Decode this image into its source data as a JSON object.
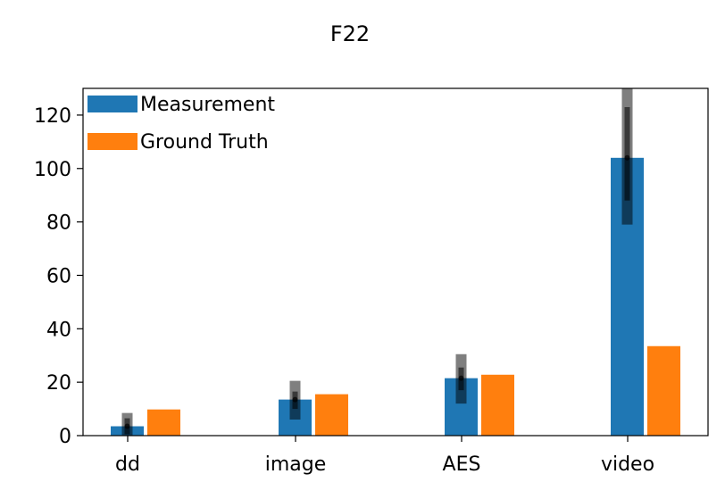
{
  "chart_data": {
    "type": "bar",
    "title": "F22",
    "xlabel": "",
    "ylabel": "",
    "categories": [
      "dd",
      "image",
      "AES",
      "video"
    ],
    "ylim": [
      0,
      130
    ],
    "yticks": [
      0,
      20,
      40,
      60,
      80,
      100,
      120
    ],
    "legend_position": "top-left",
    "grid": false,
    "series": [
      {
        "name": "Measurement",
        "color": "#1f77b4",
        "values": [
          3.5,
          13.5,
          21.5,
          104
        ],
        "error_ranges": {
          "outer": [
            [
              0,
              8.5
            ],
            [
              6,
              20.5
            ],
            [
              12,
              30.5
            ],
            [
              79,
              130
            ]
          ],
          "inner": [
            [
              0.5,
              6.5
            ],
            [
              10,
              16.5
            ],
            [
              17,
              25.5
            ],
            [
              88,
              123
            ]
          ]
        }
      },
      {
        "name": "Ground Truth",
        "color": "#ff7f0e",
        "values": [
          9.8,
          15.5,
          22.8,
          33.5
        ]
      }
    ]
  }
}
